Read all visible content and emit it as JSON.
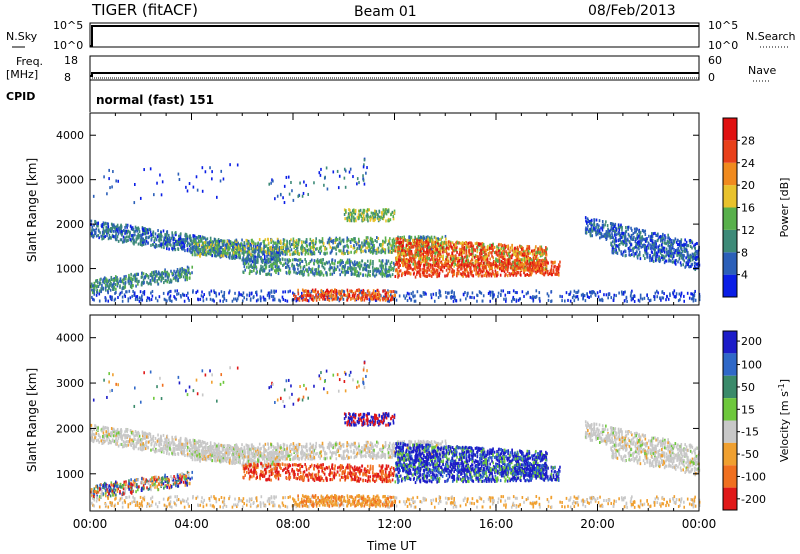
{
  "header": {
    "station": "TIGER (fitACF)",
    "beam": "Beam 01",
    "date": "08/Feb/2013"
  },
  "strip": {
    "nsky_label": "N.Sky",
    "nsearch_label": "N.Search",
    "noise_ticks": [
      "10^5",
      "10^0"
    ],
    "freq_label_line1": "Freq.",
    "freq_label_line2": "[MHz]",
    "freq_ticks": [
      "18",
      "8"
    ],
    "nave_label": "Nave",
    "nave_ticks": [
      "60",
      "0"
    ],
    "cpid_label": "CPID",
    "cpid_text": "normal (fast) 151"
  },
  "chart_data": [
    {
      "type": "heatmap",
      "parameter": "Power",
      "ylabel": "Slant Range [km]",
      "xlabel": "Time UT",
      "x_ticks": [
        "00:00",
        "04:00",
        "08:00",
        "12:00",
        "16:00",
        "20:00",
        "00:00"
      ],
      "x_range_hours": [
        0,
        24
      ],
      "y_ticks": [
        "1000",
        "2000",
        "3000",
        "4000"
      ],
      "y_range_km": [
        180,
        4500
      ],
      "colorbar": {
        "label": "Power [dB]",
        "ticks": [
          "4",
          "8",
          "12",
          "16",
          "20",
          "24",
          "28"
        ],
        "range": [
          0,
          32
        ],
        "colors": [
          "#0a1ee6",
          "#2b5fb8",
          "#3d8a78",
          "#58b04b",
          "#e8c22c",
          "#f08a1e",
          "#e8401a",
          "#e01010"
        ]
      }
    },
    {
      "type": "heatmap",
      "parameter": "Velocity",
      "ylabel": "Slant Range [km]",
      "xlabel": "Time UT",
      "x_ticks": [
        "00:00",
        "04:00",
        "08:00",
        "12:00",
        "16:00",
        "20:00",
        "00:00"
      ],
      "x_range_hours": [
        0,
        24
      ],
      "y_ticks": [
        "1000",
        "2000",
        "3000",
        "4000"
      ],
      "y_range_km": [
        180,
        4500
      ],
      "colorbar": {
        "label": "Velocity [m s",
        "label_sup": "-1",
        "label_end": "]",
        "ticks": [
          "200",
          "100",
          "50",
          "15",
          "-15",
          "-50",
          "-100",
          "-200"
        ],
        "colors": [
          "#1c1cc8",
          "#2f68c8",
          "#3a8a6a",
          "#6ec83c",
          "#c8c8c8",
          "#f0a030",
          "#f07020",
          "#e01818"
        ]
      }
    }
  ],
  "xlabel": "Time UT"
}
